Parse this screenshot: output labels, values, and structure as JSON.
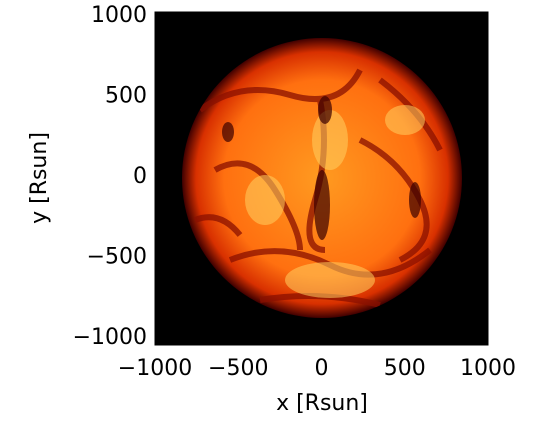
{
  "chart_data": {
    "type": "image",
    "xlabel": "x [Rsun]",
    "ylabel": "y [Rsun]",
    "xlim": [
      -1000,
      1000
    ],
    "ylim": [
      -1000,
      1000
    ],
    "xticks": [
      {
        "value": -1000,
        "label": "−1000"
      },
      {
        "value": -500,
        "label": "−500"
      },
      0,
      500,
      1000
    ],
    "yticks": [
      {
        "value": -1000,
        "label": "−1000"
      },
      {
        "value": -500,
        "label": "−500"
      },
      0,
      500,
      1000
    ]
  }
}
